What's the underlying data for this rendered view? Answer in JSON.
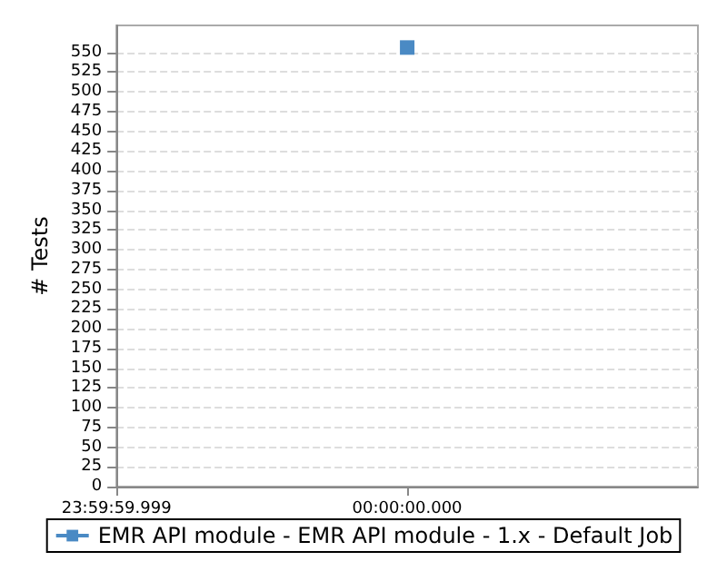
{
  "chart_data": {
    "type": "line",
    "ylabel": "# Tests",
    "categories": [
      "23:59:59.999",
      "00:00:00.000",
      null
    ],
    "series": [
      {
        "name": "EMR API module - EMR API module - 1.x - Default Job",
        "color": "#4a8ac4",
        "values": [
          null,
          556,
          null
        ]
      }
    ],
    "ylim": [
      0,
      584
    ],
    "yticks": [
      0,
      25,
      50,
      75,
      100,
      125,
      150,
      175,
      200,
      225,
      250,
      275,
      300,
      325,
      350,
      375,
      400,
      425,
      450,
      475,
      500,
      525,
      550
    ],
    "grid": "y",
    "legend": "bottom",
    "marker": "square"
  }
}
